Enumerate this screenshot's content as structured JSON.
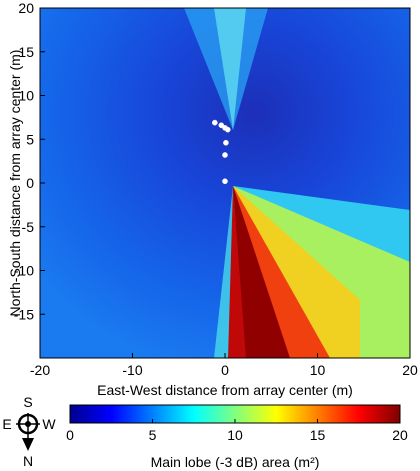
{
  "chart_data": {
    "type": "heatmap",
    "title": "",
    "xlabel": "East-West distance from array center (m)",
    "ylabel": "North-South distance from array center (m)",
    "xlim": [
      -20,
      20
    ],
    "ylim": [
      -20,
      20
    ],
    "x_ticks": [
      "-20",
      "-10",
      "0",
      "10",
      "20"
    ],
    "y_ticks": [
      "20",
      "15",
      "10",
      "5",
      "0",
      "-5",
      "-10",
      "-15"
    ],
    "grid": false,
    "colormap": "jet",
    "colorbar": {
      "label": "Main lobe (-3 dB) area (m²)",
      "range": [
        0,
        20
      ],
      "ticks": [
        "0",
        "5",
        "10",
        "15",
        "20"
      ],
      "placement": "bottom"
    },
    "compass": {
      "top": "S",
      "left": "E",
      "right": "W",
      "bottom": "N"
    },
    "array_points": [
      {
        "x": -1.1,
        "y": 6.9
      },
      {
        "x": -0.4,
        "y": 6.6
      },
      {
        "x": 0.0,
        "y": 6.3
      },
      {
        "x": 0.3,
        "y": 6.1
      },
      {
        "x": 0.1,
        "y": 4.6
      },
      {
        "x": 0.0,
        "y": 3.2
      },
      {
        "x": 0.0,
        "y": 0.2
      }
    ],
    "value_regions": [
      {
        "region": "background",
        "value": 3
      },
      {
        "region": "north beam",
        "value": 6
      },
      {
        "region": "south beam outer",
        "value": 8
      },
      {
        "region": "south beam middle",
        "value": 12
      },
      {
        "region": "south beam inner",
        "value": 16
      },
      {
        "region": "south beam core",
        "value": 20
      }
    ]
  }
}
